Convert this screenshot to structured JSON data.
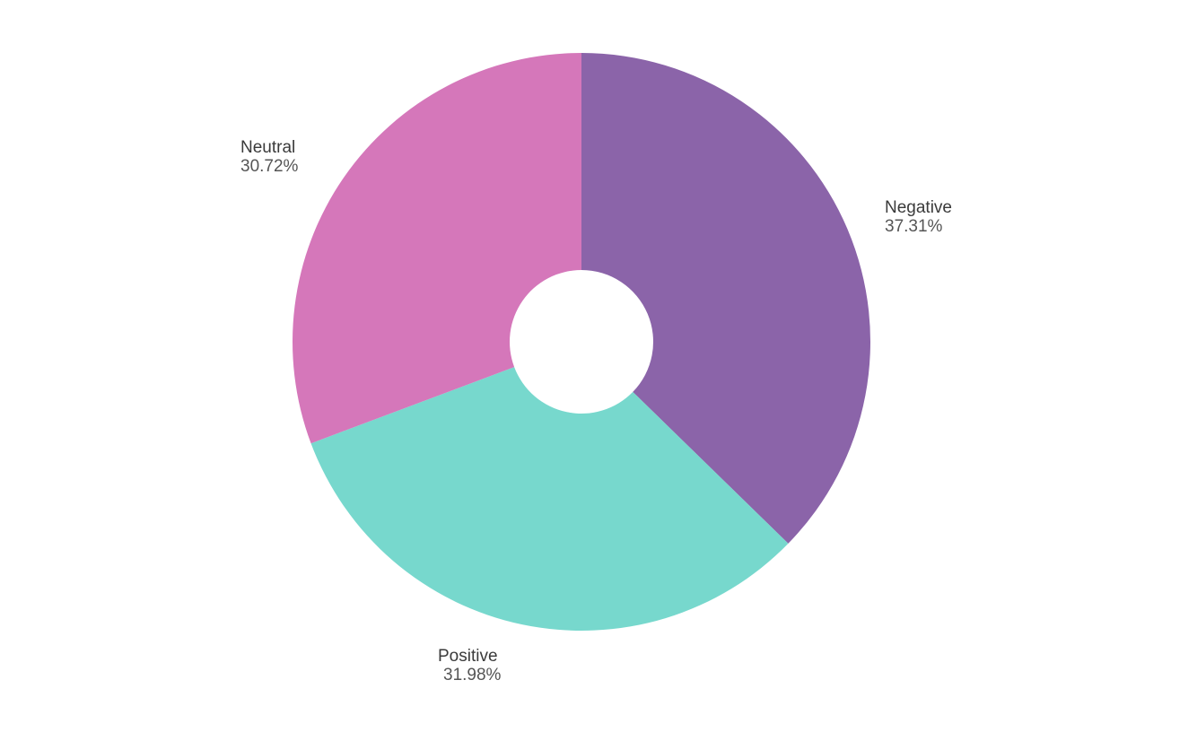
{
  "chart_data": {
    "type": "pie",
    "donut": true,
    "slices": [
      {
        "label": "Negative",
        "value": 37.31,
        "value_label": "37.31%",
        "color": "#8b64a9"
      },
      {
        "label": "Positive",
        "value": 31.98,
        "value_label": "31.98%",
        "color": "#77d8cd"
      },
      {
        "label": "Neutral",
        "value": 30.72,
        "value_label": "30.72%",
        "color": "#d577ba"
      }
    ],
    "start_angle_deg": 0,
    "direction": "clockwise",
    "legend": "none",
    "title": ""
  }
}
